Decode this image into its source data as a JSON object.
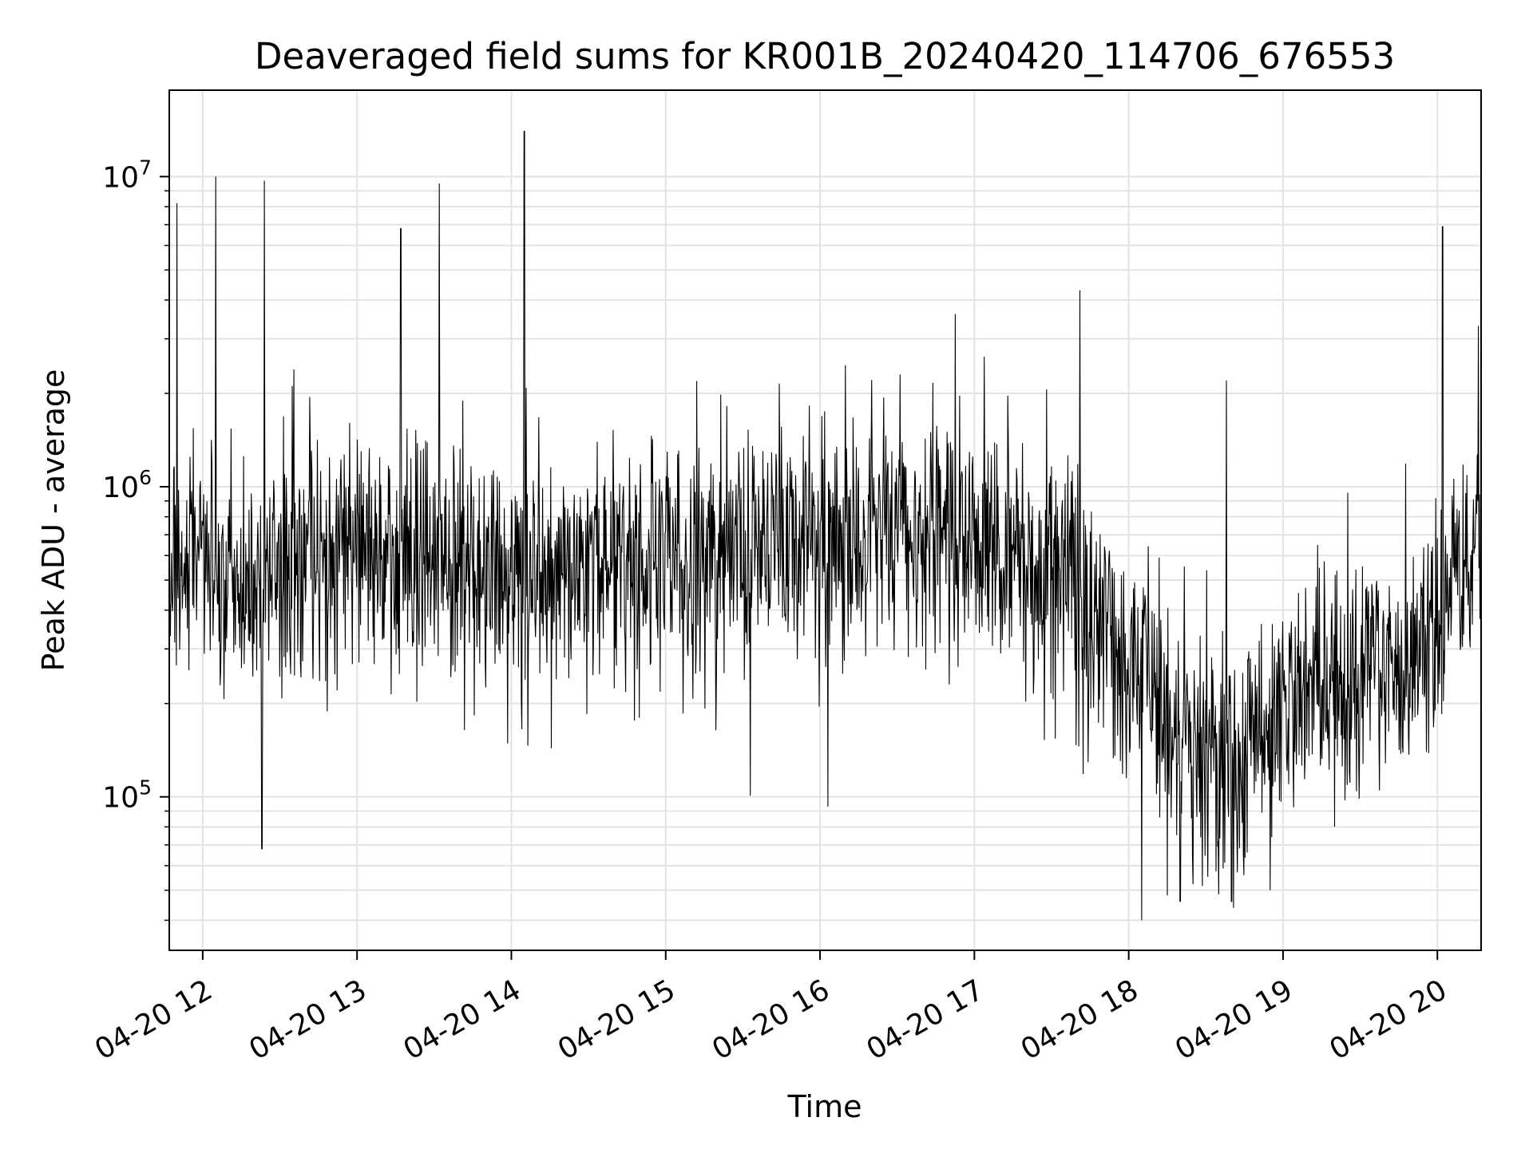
{
  "chart_data": {
    "type": "line",
    "title": "Deaveraged field sums for KR001B_20240420_114706_676553",
    "xlabel": "Time",
    "ylabel": "Peak ADU - average",
    "y_scale": "log",
    "x_ticks": [
      "04-20 12",
      "04-20 13",
      "04-20 14",
      "04-20 15",
      "04-20 16",
      "04-20 17",
      "04-20 18",
      "04-20 19",
      "04-20 20"
    ],
    "y_ticks": [
      {
        "base": "10",
        "exp": "5",
        "value": 100000
      },
      {
        "base": "10",
        "exp": "6",
        "value": 1000000
      },
      {
        "base": "10",
        "exp": "7",
        "value": 10000000
      }
    ],
    "xlim": [
      "2024-04-20 11:47",
      "2024-04-20 20:17"
    ],
    "ylim": [
      32000,
      19000000
    ],
    "grid": true,
    "line_color": "#000000",
    "baseline": [
      {
        "t": "2024-04-20 11:47",
        "v": 550000
      },
      {
        "t": "2024-04-20 12:30",
        "v": 520000
      },
      {
        "t": "2024-04-20 13:00",
        "v": 620000
      },
      {
        "t": "2024-04-20 13:30",
        "v": 560000
      },
      {
        "t": "2024-04-20 14:00",
        "v": 520000
      },
      {
        "t": "2024-04-20 14:30",
        "v": 560000
      },
      {
        "t": "2024-04-20 15:00",
        "v": 580000
      },
      {
        "t": "2024-04-20 15:30",
        "v": 620000
      },
      {
        "t": "2024-04-20 16:00",
        "v": 700000
      },
      {
        "t": "2024-04-20 16:30",
        "v": 760000
      },
      {
        "t": "2024-04-20 17:00",
        "v": 680000
      },
      {
        "t": "2024-04-20 17:30",
        "v": 520000
      },
      {
        "t": "2024-04-20 18:00",
        "v": 280000
      },
      {
        "t": "2024-04-20 18:20",
        "v": 150000
      },
      {
        "t": "2024-04-20 18:45",
        "v": 130000
      },
      {
        "t": "2024-04-20 19:05",
        "v": 220000
      },
      {
        "t": "2024-04-20 19:30",
        "v": 240000
      },
      {
        "t": "2024-04-20 19:55",
        "v": 330000
      },
      {
        "t": "2024-04-20 20:17",
        "v": 700000
      }
    ],
    "spikes": [
      {
        "t": "2024-04-20 11:50",
        "v": 8200000
      },
      {
        "t": "2024-04-20 12:05",
        "v": 10000000
      },
      {
        "t": "2024-04-20 12:24",
        "v": 9700000
      },
      {
        "t": "2024-04-20 13:17",
        "v": 6800000
      },
      {
        "t": "2024-04-20 13:32",
        "v": 9500000
      },
      {
        "t": "2024-04-20 14:05",
        "v": 14000000
      },
      {
        "t": "2024-04-20 17:41",
        "v": 4300000
      },
      {
        "t": "2024-04-20 18:38",
        "v": 2200000
      },
      {
        "t": "2024-04-20 20:02",
        "v": 6900000
      },
      {
        "t": "2024-04-20 20:16",
        "v": 3300000
      }
    ],
    "dips": [
      {
        "t": "2024-04-20 12:23",
        "v": 68000
      },
      {
        "t": "2024-04-20 16:03",
        "v": 93000
      },
      {
        "t": "2024-04-20 18:05",
        "v": 40000
      },
      {
        "t": "2024-04-20 18:20",
        "v": 46000
      },
      {
        "t": "2024-04-20 18:40",
        "v": 46000
      },
      {
        "t": "2024-04-20 18:55",
        "v": 50000
      }
    ]
  }
}
